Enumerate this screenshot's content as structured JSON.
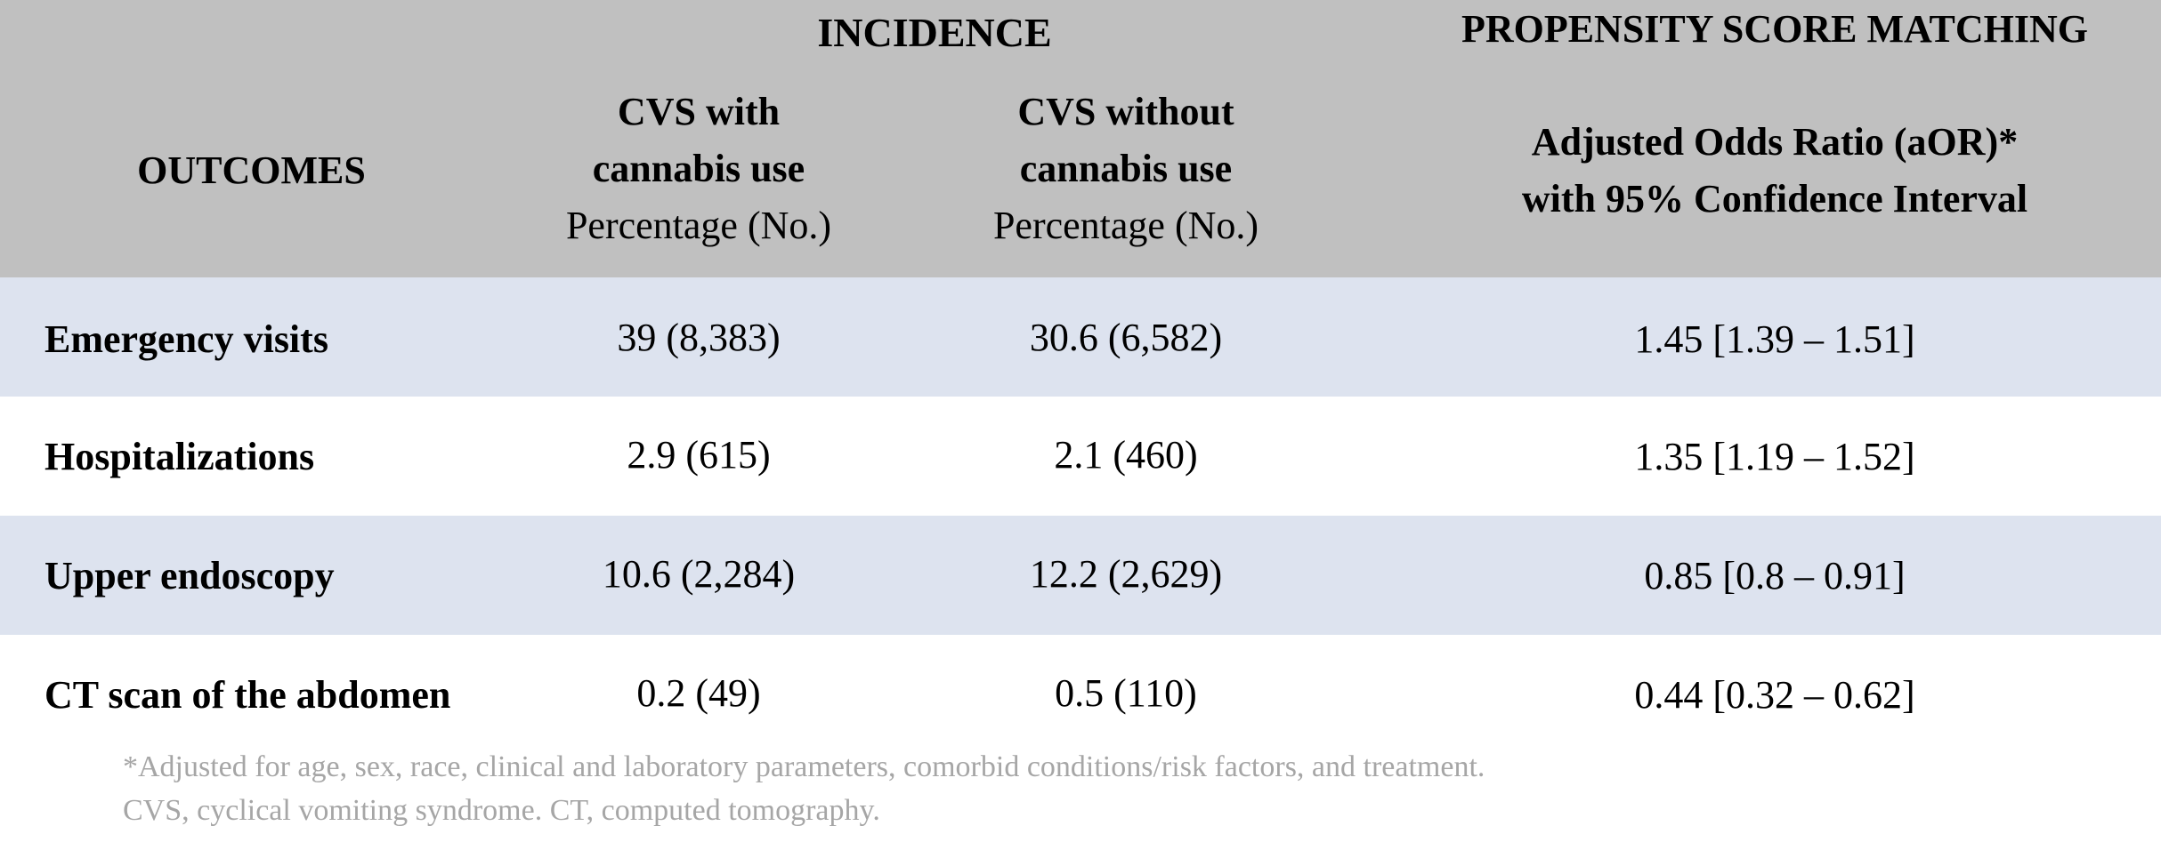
{
  "header": {
    "incidence": "INCIDENCE",
    "propensity": "PROPENSITY SCORE MATCHING",
    "outcomes": "OUTCOMES",
    "with_line1": "CVS with",
    "with_line2": "cannabis use",
    "with_sub": "Percentage (No.)",
    "without_line1": "CVS without",
    "without_line2": "cannabis use",
    "without_sub": "Percentage (No.)",
    "aor_line1": "Adjusted Odds Ratio (aOR)*",
    "aor_line2": "with 95% Confidence Interval"
  },
  "rows": [
    {
      "outcome": "Emergency visits",
      "with": "39 (8,383)",
      "without": "30.6 (6,582)",
      "aor": "1.45 [1.39 – 1.51]"
    },
    {
      "outcome": "Hospitalizations",
      "with": "2.9 (615)",
      "without": "2.1 (460)",
      "aor": "1.35 [1.19 – 1.52]"
    },
    {
      "outcome": "Upper endoscopy",
      "with": "10.6 (2,284)",
      "without": "12.2 (2,629)",
      "aor": "0.85 [0.8 – 0.91]"
    },
    {
      "outcome": "CT scan of the abdomen",
      "with": "0.2 (49)",
      "without": "0.5 (110)",
      "aor": "0.44 [0.32 – 0.62]"
    }
  ],
  "footnote": {
    "line1": "*Adjusted for age, sex, race, clinical and laboratory parameters, comorbid conditions/risk factors, and treatment.",
    "line2": "CVS, cyclical vomiting syndrome. CT, computed tomography."
  },
  "colors": {
    "header_bg": "#c0c0c0",
    "shaded_row_bg": "#dde3ef",
    "footnote_text": "#a6a6a6"
  }
}
